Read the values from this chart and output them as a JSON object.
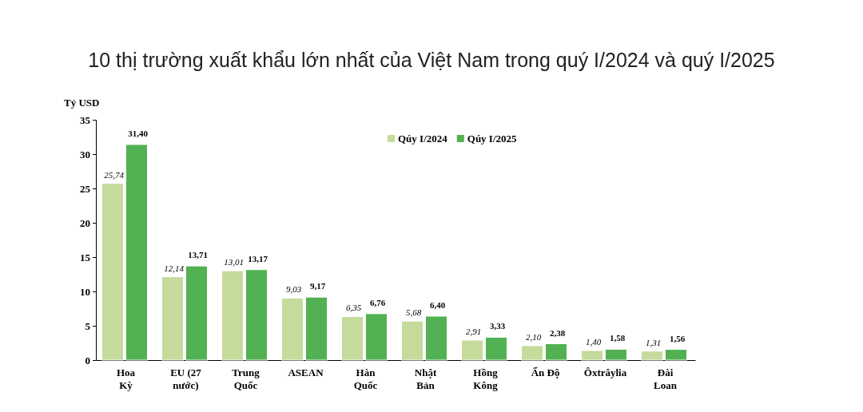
{
  "chart_data": {
    "type": "bar",
    "title": "10 thị trường xuất khẩu lớn nhất của Việt Nam trong quý I/2024 và quý I/2025",
    "ylabel": "Tỷ USD",
    "categories": [
      "Hoa Kỳ",
      "EU (27 nước)",
      "Trung Quốc",
      "ASEAN",
      "Hàn Quốc",
      "Nhật Bản",
      "Hồng Kông",
      "Ấn Độ",
      "Ôxtrâylia",
      "Đài Loan"
    ],
    "series": [
      {
        "name": "Qúy I/2024",
        "color": "#c4db9c",
        "values": [
          25.74,
          12.14,
          13.01,
          9.03,
          6.35,
          5.68,
          2.91,
          2.1,
          1.4,
          1.31
        ],
        "value_labels": [
          "25,74",
          "12,14",
          "13,01",
          "9,03",
          "6,35",
          "5,68",
          "2,91",
          "2,10",
          "1,40",
          "1,31"
        ]
      },
      {
        "name": "Qúy I/2025",
        "color": "#52b152",
        "values": [
          31.4,
          13.71,
          13.17,
          9.17,
          6.76,
          6.4,
          3.33,
          2.38,
          1.58,
          1.56
        ],
        "value_labels": [
          "31,40",
          "13,71",
          "13,17",
          "9,17",
          "6,76",
          "6,40",
          "3,33",
          "2,38",
          "1,58",
          "1,56"
        ]
      }
    ],
    "ylim": [
      0,
      35
    ],
    "yticks": [
      0,
      5,
      10,
      15,
      20,
      25,
      30,
      35
    ],
    "grid": false,
    "legend": "top"
  }
}
